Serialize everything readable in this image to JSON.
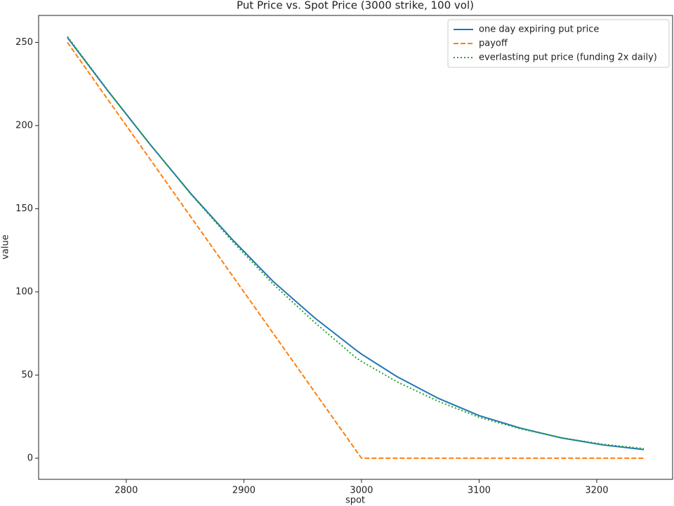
{
  "chart_data": {
    "type": "line",
    "title": "Put Price vs. Spot Price (3000 strike, 100 vol)",
    "x_label": "spot",
    "y_label": "value",
    "x": [
      2750,
      2785,
      2820,
      2855,
      2890,
      2925,
      2960,
      2995,
      3000,
      3030,
      3065,
      3100,
      3135,
      3170,
      3205,
      3240
    ],
    "series": [
      {
        "name": "one day expiring put price",
        "color": "#1f77b4",
        "linestyle": "solid",
        "values": [
          252.9,
          220.3,
          188.9,
          159.0,
          131.6,
          106.2,
          84.5,
          65.2,
          62.6,
          49.1,
          36.1,
          25.6,
          18.1,
          12.2,
          8.0,
          5.2
        ]
      },
      {
        "name": "payoff",
        "color": "#ff7f0e",
        "linestyle": "dashed",
        "values": [
          250,
          215,
          180,
          145,
          110,
          75,
          40,
          5,
          0,
          0,
          0,
          0,
          0,
          0,
          0,
          0
        ]
      },
      {
        "name": "everlasting put price (funding 2x daily)",
        "color": "#2ca02c",
        "linestyle": "dotted",
        "values": [
          253.5,
          220.5,
          189.0,
          158.7,
          130.6,
          104.6,
          81.8,
          60.6,
          58.2,
          46.0,
          34.3,
          24.6,
          17.7,
          12.3,
          8.4,
          5.8
        ]
      }
    ],
    "xlim": [
      2725.5,
      3264.5
    ],
    "ylim": [
      -12.7,
      266.2
    ],
    "xticks": [
      2800,
      2900,
      3000,
      3100,
      3200
    ],
    "yticks": [
      0,
      50,
      100,
      150,
      200,
      250
    ],
    "legend": "upper right",
    "grid": false
  }
}
